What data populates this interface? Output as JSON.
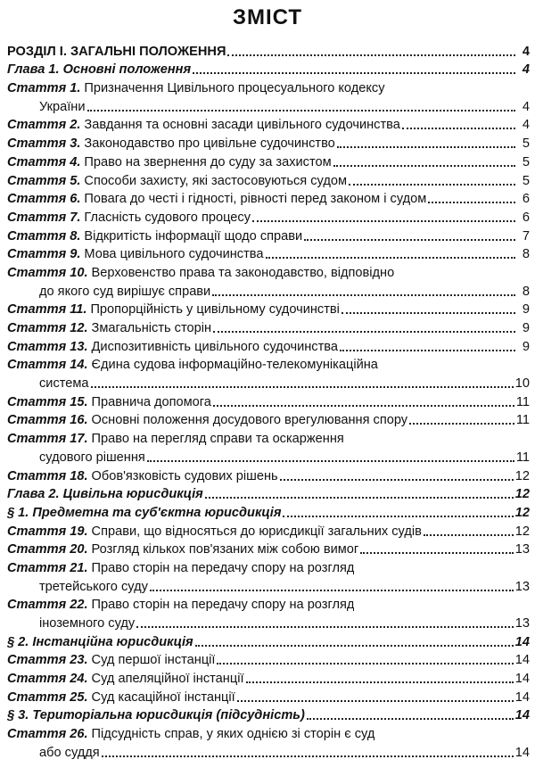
{
  "title": "ЗМІСТ",
  "entries": [
    {
      "kind": "section",
      "lines": [
        "РОЗДІЛ І. ЗАГАЛЬНІ ПОЛОЖЕННЯ"
      ],
      "page": 4
    },
    {
      "kind": "chapter",
      "lines": [
        "Глава 1. Основні положення"
      ],
      "page": 4
    },
    {
      "kind": "article",
      "label": "Стаття 1.",
      "lines": [
        "Призначення Цивільного процесуального кодексу",
        "України"
      ],
      "page": 4
    },
    {
      "kind": "article",
      "label": "Стаття 2.",
      "lines": [
        "Завдання та основні засади цивільного судочинства"
      ],
      "page": 4
    },
    {
      "kind": "article",
      "label": "Стаття 3.",
      "lines": [
        "Законодавство про цивільне судочинство"
      ],
      "page": 5
    },
    {
      "kind": "article",
      "label": "Стаття 4.",
      "lines": [
        "Право на звернення до суду за захистом"
      ],
      "page": 5
    },
    {
      "kind": "article",
      "label": "Стаття 5.",
      "lines": [
        "Способи захисту, які застосовуються судом"
      ],
      "page": 5
    },
    {
      "kind": "article",
      "label": "Стаття 6.",
      "lines": [
        "Повага до честі і гідності, рівності перед законом і судом"
      ],
      "page": 6
    },
    {
      "kind": "article",
      "label": "Стаття 7.",
      "lines": [
        "Гласність судового процесу"
      ],
      "page": 6
    },
    {
      "kind": "article",
      "label": "Стаття 8.",
      "lines": [
        "Відкритість інформації щодо справи"
      ],
      "page": 7
    },
    {
      "kind": "article",
      "label": "Стаття 9.",
      "lines": [
        "Мова цивільного судочинства"
      ],
      "page": 8
    },
    {
      "kind": "article",
      "label": "Стаття 10.",
      "lines": [
        "Верховенство права та законодавство, відповідно",
        "до якого суд вирішує справи"
      ],
      "page": 8
    },
    {
      "kind": "article",
      "label": "Стаття 11.",
      "lines": [
        "Пропорційність у цивільному судочинстві"
      ],
      "page": 9
    },
    {
      "kind": "article",
      "label": "Стаття 12.",
      "lines": [
        "Змагальність сторін"
      ],
      "page": 9
    },
    {
      "kind": "article",
      "label": "Стаття 13.",
      "lines": [
        "Диспозитивність цивільного судочинства"
      ],
      "page": 9
    },
    {
      "kind": "article",
      "label": "Стаття 14.",
      "lines": [
        "Єдина судова інформаційно-телекомунікаційна",
        "система"
      ],
      "page": 10
    },
    {
      "kind": "article",
      "label": "Стаття 15.",
      "lines": [
        "Правнича допомога"
      ],
      "page": 11
    },
    {
      "kind": "article",
      "label": "Стаття 16.",
      "lines": [
        "Основні положення досудового врегулювання спору"
      ],
      "page": 11
    },
    {
      "kind": "article",
      "label": "Стаття 17.",
      "lines": [
        "Право на перегляд справи та оскарження",
        "судового рішення"
      ],
      "page": 11
    },
    {
      "kind": "article",
      "label": "Стаття 18.",
      "lines": [
        "Обов'язковість судових рішень"
      ],
      "page": 12
    },
    {
      "kind": "chapter",
      "lines": [
        "Глава 2. Цивільна юрисдикція"
      ],
      "page": 12
    },
    {
      "kind": "chapter",
      "lines": [
        "§ 1. Предметна та суб'єктна юрисдикція"
      ],
      "page": 12
    },
    {
      "kind": "article",
      "label": "Стаття 19.",
      "lines": [
        "Справи, що відносяться до юрисдикції загальних судів"
      ],
      "page": 12
    },
    {
      "kind": "article",
      "label": "Стаття 20.",
      "lines": [
        "Розгляд кількох пов'язаних між собою вимог"
      ],
      "page": 13
    },
    {
      "kind": "article",
      "label": "Стаття 21.",
      "lines": [
        "Право сторін на передачу спору на розгляд",
        "третейського суду"
      ],
      "page": 13
    },
    {
      "kind": "article",
      "label": "Стаття 22.",
      "lines": [
        "Право сторін на передачу спору на розгляд",
        "іноземного суду"
      ],
      "page": 13
    },
    {
      "kind": "chapter",
      "lines": [
        "§ 2. Інстанційна юрисдикція"
      ],
      "page": 14
    },
    {
      "kind": "article",
      "label": "Стаття 23.",
      "lines": [
        "Суд першої інстанції"
      ],
      "page": 14
    },
    {
      "kind": "article",
      "label": "Стаття 24.",
      "lines": [
        "Суд апеляційної інстанції"
      ],
      "page": 14
    },
    {
      "kind": "article",
      "label": "Стаття 25.",
      "lines": [
        "Суд касаційної інстанції"
      ],
      "page": 14
    },
    {
      "kind": "chapter",
      "lines": [
        "§ 3. Територіальна юрисдикція (підсудність)"
      ],
      "page": 14
    },
    {
      "kind": "article",
      "label": "Стаття 26.",
      "lines": [
        "Підсудність справ, у яких однією зі сторін є суд",
        "або суддя"
      ],
      "page": 14
    }
  ]
}
